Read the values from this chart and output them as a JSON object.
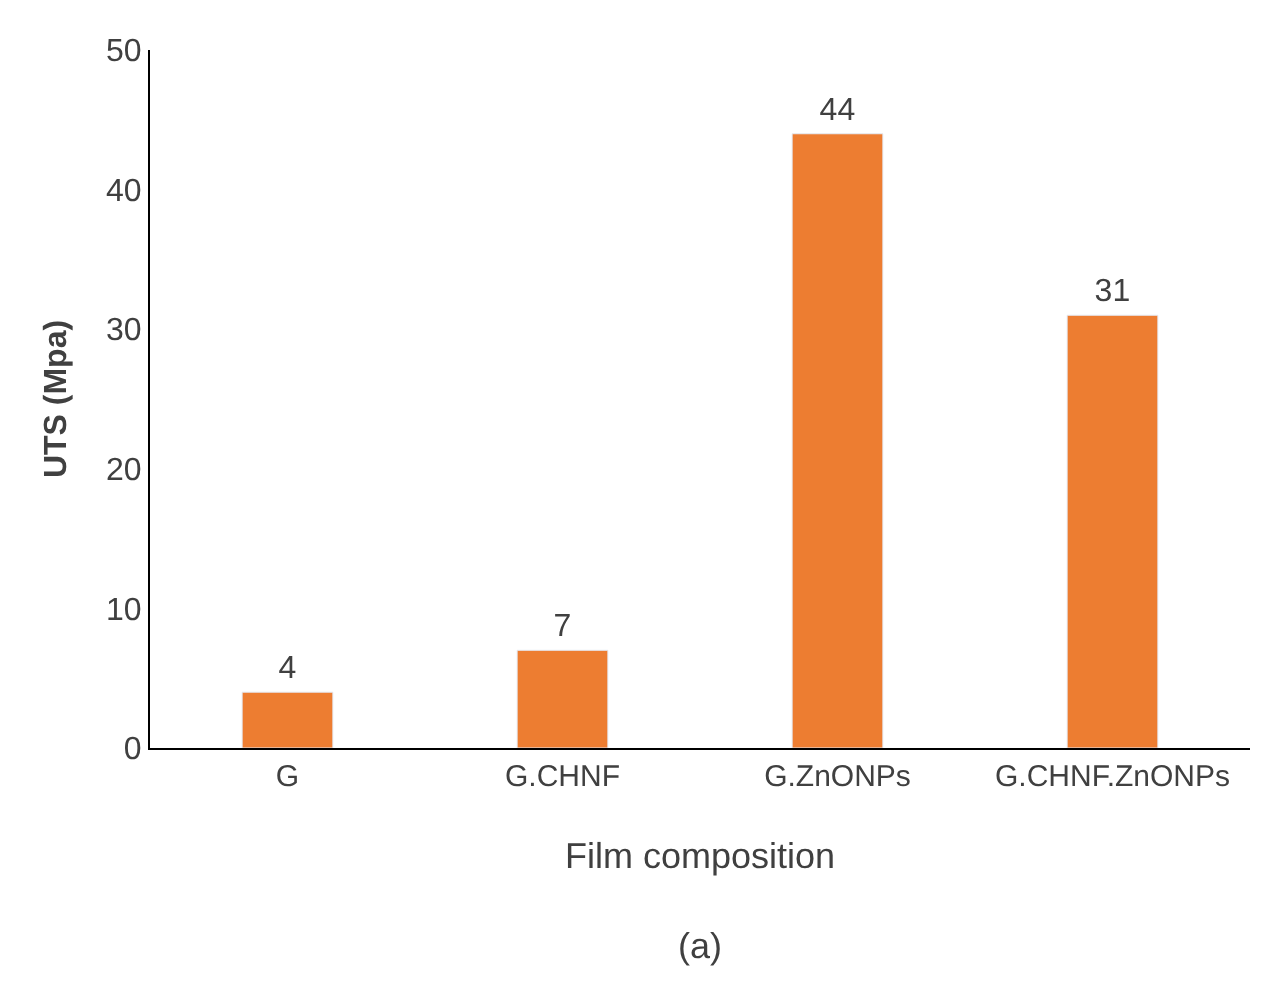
{
  "chart_data": {
    "type": "bar",
    "categories": [
      "G",
      "G.CHNF",
      "G.ZnONPs",
      "G.CHNF.ZnONPs"
    ],
    "values": [
      4,
      7,
      44,
      31
    ],
    "color": "#ed7d31",
    "xlabel": "Film composition",
    "ylabel": "UTS (Mpa)",
    "annotations": [
      "(a)"
    ],
    "ylim": [
      0,
      50
    ],
    "yticks": [
      0,
      10,
      20,
      30,
      40,
      50
    ],
    "data_labels": true,
    "legend": false
  }
}
